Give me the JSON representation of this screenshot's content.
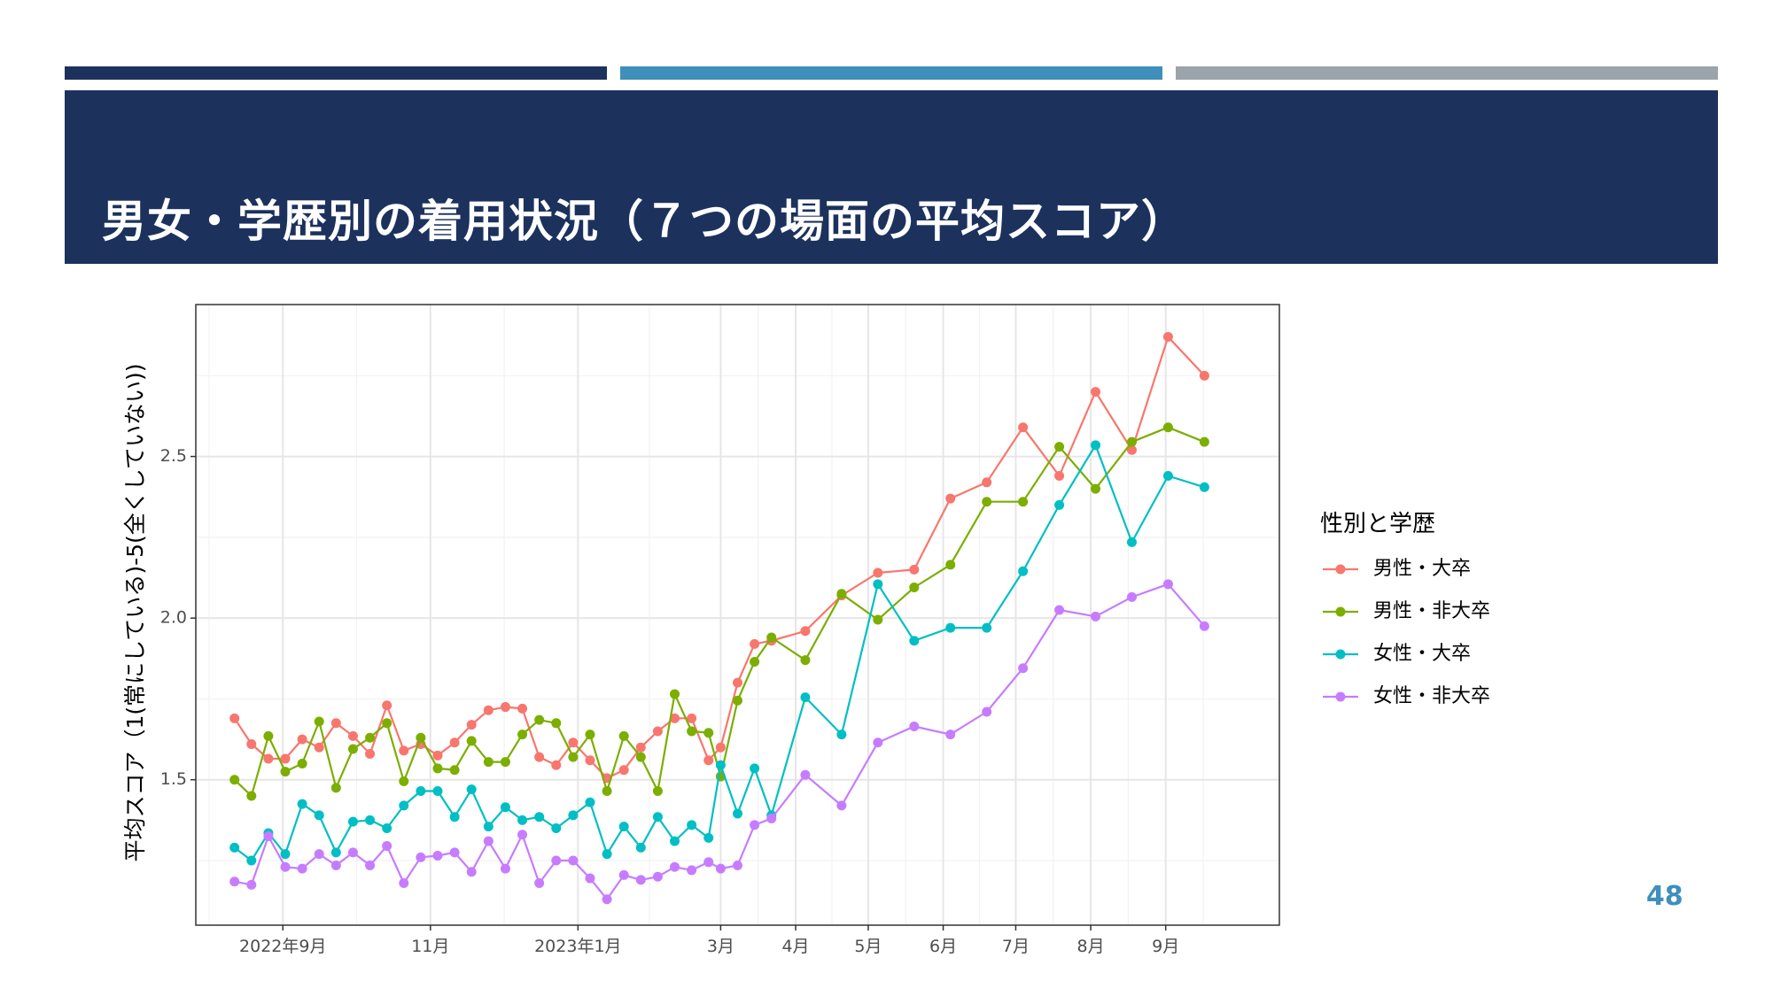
{
  "slide": {
    "title": "男女・学歴別の着用状況（７つの場面の平均スコア）",
    "page_number": "48"
  },
  "colors": {
    "header_dark": "#1c325d",
    "header_blue": "#3f8fbb",
    "header_gray": "#9ba3ab"
  },
  "chart_data": {
    "type": "line",
    "ylabel": "平均スコア（1(常にしている)-5(全くしていない))",
    "xlabel": "",
    "ylim": [
      1.05,
      2.97
    ],
    "yticks": [
      1.5,
      2.0,
      2.5
    ],
    "ytick_labels": [
      "1.5",
      "2.0",
      "2.5"
    ],
    "xlim": [
      "2022-07-27",
      "2023-10-18"
    ],
    "xticks": [
      "2022-09-01",
      "2022-11-01",
      "2023-01-01",
      "2023-03-01",
      "2023-04-01",
      "2023-05-01",
      "2023-06-01",
      "2023-07-01",
      "2023-08-01",
      "2023-09-01"
    ],
    "xtick_labels": [
      "2022年9月",
      "11月",
      "2023年1月",
      "3月",
      "4月",
      "5月",
      "6月",
      "7月",
      "8月",
      "9月"
    ],
    "grid": true,
    "legend_title": "性別と学歴",
    "legend_position": "right",
    "x": [
      "2022-08-12",
      "2022-08-19",
      "2022-08-26",
      "2022-09-02",
      "2022-09-09",
      "2022-09-16",
      "2022-09-23",
      "2022-09-30",
      "2022-10-07",
      "2022-10-14",
      "2022-10-21",
      "2022-10-28",
      "2022-11-04",
      "2022-11-11",
      "2022-11-18",
      "2022-11-25",
      "2022-12-02",
      "2022-12-09",
      "2022-12-16",
      "2022-12-23",
      "2022-12-30",
      "2023-01-06",
      "2023-01-13",
      "2023-01-20",
      "2023-01-27",
      "2023-02-03",
      "2023-02-10",
      "2023-02-17",
      "2023-02-24",
      "2023-03-01",
      "2023-03-08",
      "2023-03-15",
      "2023-03-22",
      "2023-04-05",
      "2023-04-20",
      "2023-05-05",
      "2023-05-20",
      "2023-06-04",
      "2023-06-19",
      "2023-07-04",
      "2023-07-19",
      "2023-08-03",
      "2023-08-18",
      "2023-09-02",
      "2023-09-17",
      "2023-10-02"
    ],
    "series": [
      {
        "name": "男性・大卒",
        "color": "#f8766d",
        "values": [
          1.69,
          1.61,
          1.565,
          1.565,
          1.625,
          1.6,
          1.675,
          1.635,
          1.58,
          1.73,
          1.59,
          1.61,
          1.575,
          1.615,
          1.67,
          1.715,
          1.725,
          1.72,
          1.57,
          1.545,
          1.615,
          1.56,
          1.505,
          1.53,
          1.6,
          1.65,
          1.69,
          1.69,
          1.56,
          1.6,
          1.8,
          1.92,
          1.93,
          1.96,
          2.07,
          2.14,
          2.15,
          2.37,
          2.42,
          2.59,
          2.44,
          2.7,
          2.52,
          2.87,
          2.75,
          null
        ]
      },
      {
        "name": "男性・非大卒",
        "color": "#7cae00",
        "values": [
          1.5,
          1.45,
          1.635,
          1.525,
          1.55,
          1.68,
          1.475,
          1.595,
          1.63,
          1.675,
          1.495,
          1.63,
          1.535,
          1.53,
          1.62,
          1.555,
          1.555,
          1.64,
          1.685,
          1.675,
          1.57,
          1.64,
          1.465,
          1.635,
          1.57,
          1.465,
          1.765,
          1.65,
          1.645,
          1.51,
          1.745,
          1.865,
          1.94,
          1.87,
          2.075,
          1.995,
          2.095,
          2.165,
          2.36,
          2.36,
          2.53,
          2.4,
          2.545,
          2.59,
          2.545,
          null
        ]
      },
      {
        "name": "女性・大卒",
        "color": "#00bfc4",
        "values": [
          1.29,
          1.25,
          1.335,
          1.27,
          1.425,
          1.39,
          1.275,
          1.37,
          1.375,
          1.35,
          1.42,
          1.465,
          1.465,
          1.385,
          1.47,
          1.355,
          1.415,
          1.375,
          1.385,
          1.35,
          1.39,
          1.43,
          1.27,
          1.355,
          1.29,
          1.385,
          1.31,
          1.36,
          1.32,
          1.545,
          1.395,
          1.535,
          1.39,
          1.755,
          1.64,
          2.105,
          1.93,
          1.97,
          1.97,
          2.145,
          2.35,
          2.535,
          2.235,
          2.44,
          2.405,
          null
        ]
      },
      {
        "name": "女性・非大卒",
        "color": "#c77cff",
        "values": [
          1.185,
          1.175,
          1.325,
          1.23,
          1.225,
          1.27,
          1.235,
          1.275,
          1.235,
          1.295,
          1.18,
          1.26,
          1.265,
          1.275,
          1.215,
          1.31,
          1.225,
          1.33,
          1.18,
          1.25,
          1.25,
          1.195,
          1.13,
          1.205,
          1.19,
          1.2,
          1.23,
          1.22,
          1.245,
          1.225,
          1.235,
          1.36,
          1.38,
          1.515,
          1.42,
          1.615,
          1.665,
          1.64,
          1.71,
          1.845,
          2.025,
          2.005,
          2.065,
          2.105,
          1.975,
          null
        ]
      }
    ]
  }
}
